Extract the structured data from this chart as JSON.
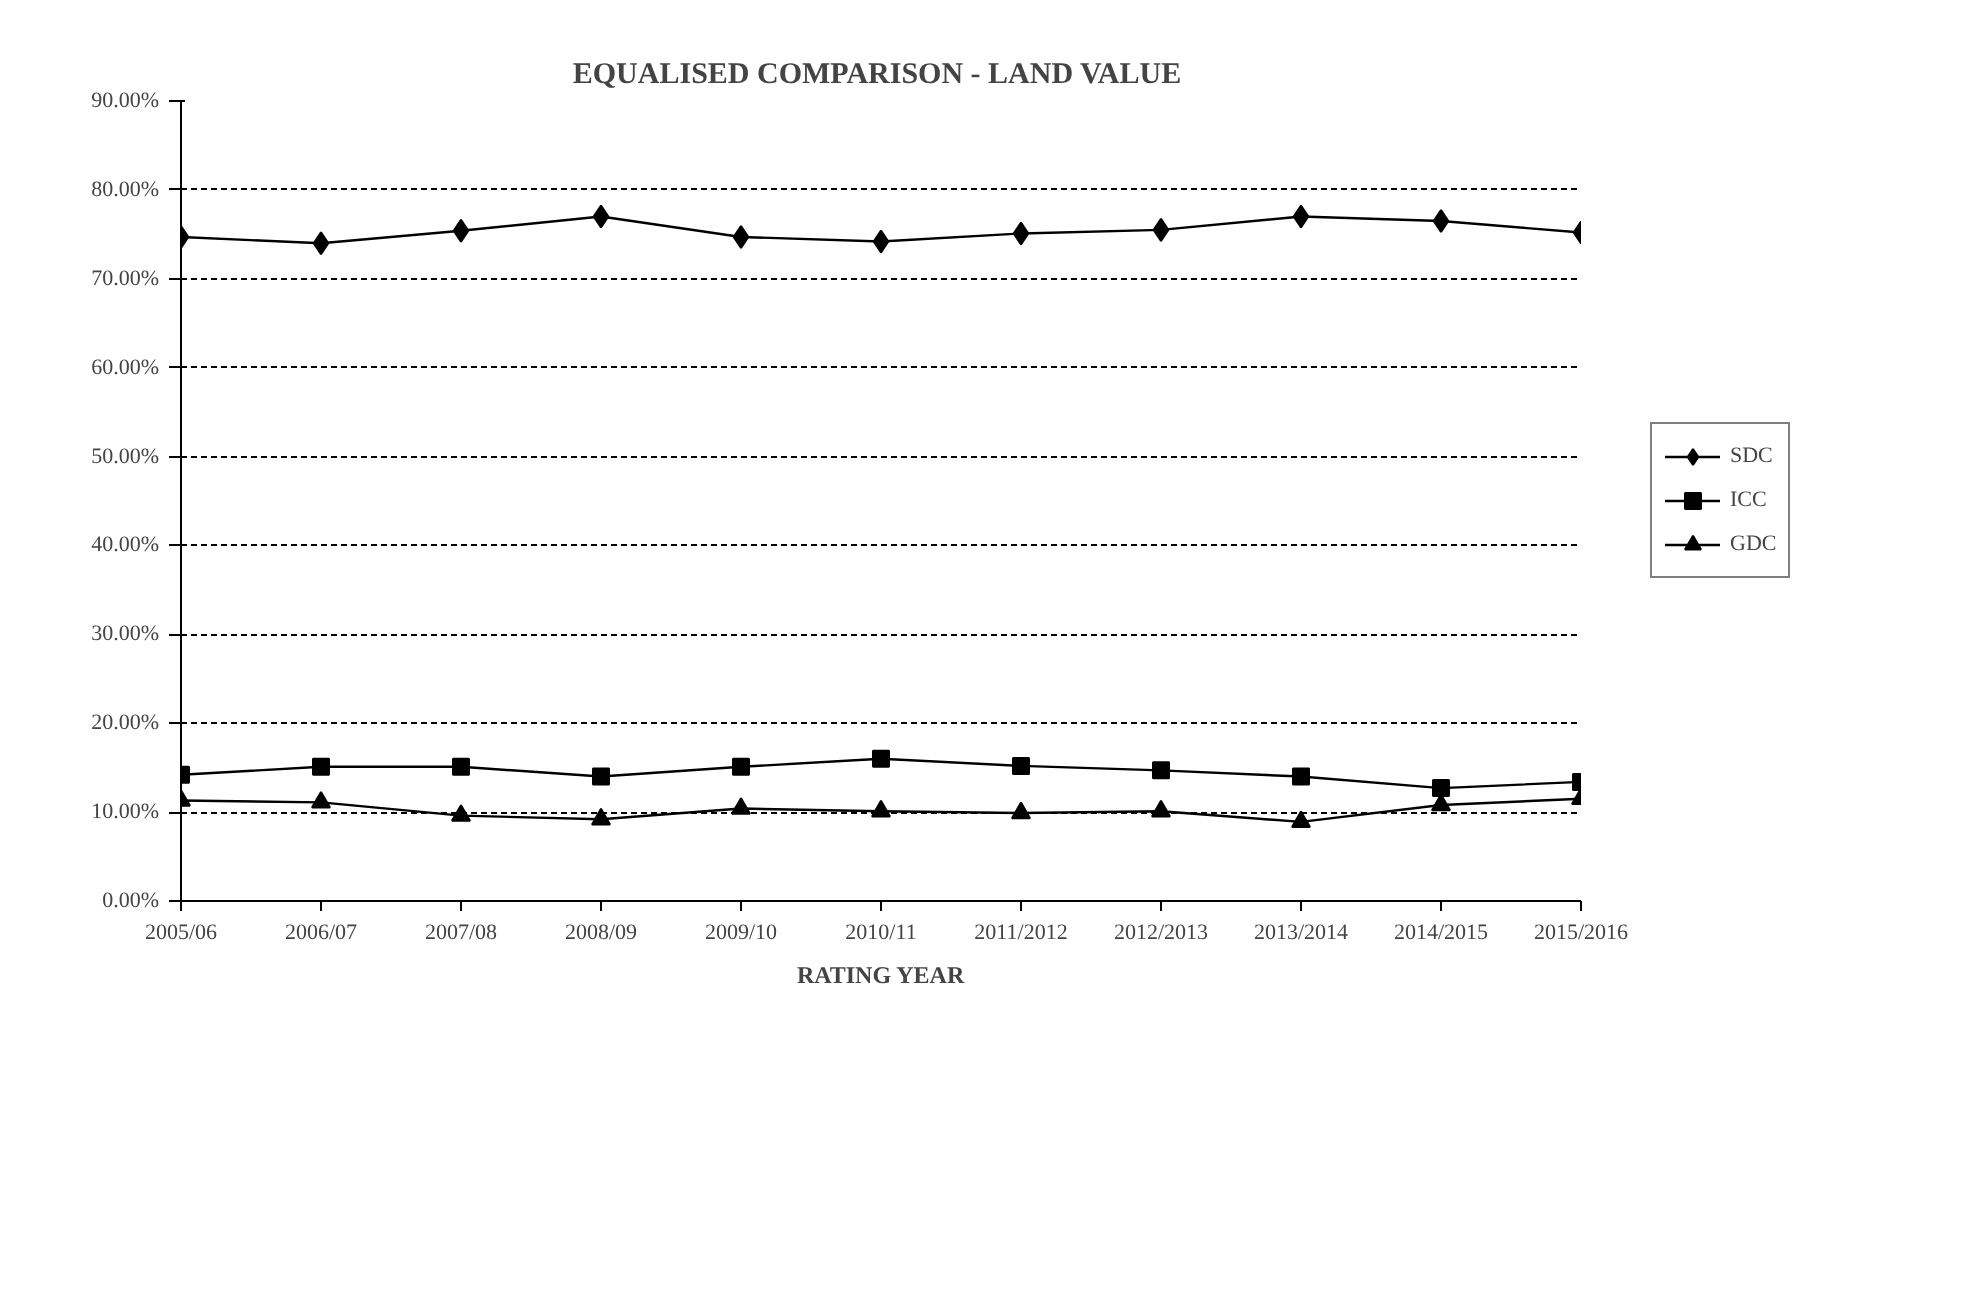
{
  "chart_data": {
    "type": "line",
    "title": "EQUALISED COMPARISON -  LAND VALUE",
    "xlabel": "RATING YEAR",
    "categories": [
      "2005/06",
      "2006/07",
      "2007/08",
      "2008/09",
      "2009/10",
      "2010/11",
      "2011/2012",
      "2012/2013",
      "2013/2014",
      "2014/2015",
      "2015/2016"
    ],
    "series": [
      {
        "name": "SDC",
        "color": "#000000",
        "marker": "diamond",
        "values": [
          74.7,
          74.0,
          75.4,
          77.0,
          74.7,
          74.2,
          75.1,
          75.5,
          77.0,
          76.5,
          75.2
        ]
      },
      {
        "name": "ICC",
        "color": "#000000",
        "marker": "square",
        "values": [
          14.2,
          15.1,
          15.1,
          14.0,
          15.1,
          16.0,
          15.2,
          14.7,
          14.0,
          12.7,
          13.4
        ]
      },
      {
        "name": "GDC",
        "color": "#000000",
        "marker": "triangle",
        "values": [
          11.3,
          11.1,
          9.6,
          9.2,
          10.4,
          10.1,
          9.9,
          10.1,
          8.9,
          10.8,
          11.5
        ]
      }
    ],
    "ylim": [
      0,
      90
    ],
    "yticks": [
      {
        "value": 0,
        "label": "0.00%"
      },
      {
        "value": 10,
        "label": "10.00%"
      },
      {
        "value": 20,
        "label": "20.00%"
      },
      {
        "value": 30,
        "label": "30.00%"
      },
      {
        "value": 40,
        "label": "40.00%"
      },
      {
        "value": 50,
        "label": "50.00%"
      },
      {
        "value": 60,
        "label": "60.00%"
      },
      {
        "value": 70,
        "label": "70.00%"
      },
      {
        "value": 80,
        "label": "80.00%"
      },
      {
        "value": 90,
        "label": "90.00%"
      }
    ],
    "grid": "y",
    "legend": "right",
    "line_style": "solid"
  }
}
